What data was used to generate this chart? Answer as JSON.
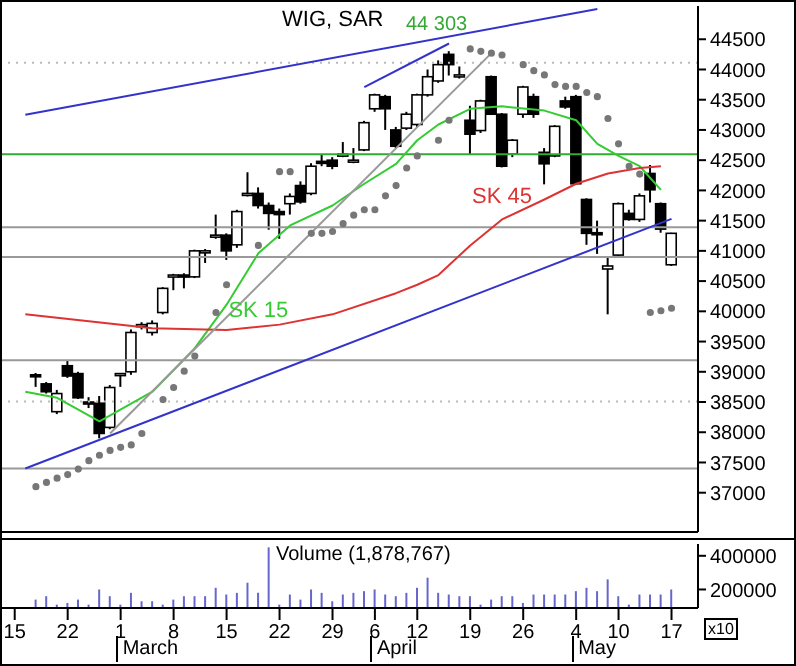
{
  "chart_data": [
    {
      "type": "candlestick",
      "title": "WIG, SAR",
      "categories": [
        "15",
        null,
        null,
        null,
        null,
        "22",
        null,
        null,
        null,
        null,
        "1",
        null,
        null,
        null,
        null,
        "8",
        null,
        null,
        null,
        null,
        "15",
        null,
        null,
        null,
        null,
        "22",
        null,
        null,
        null,
        null,
        "29",
        null,
        null,
        null,
        "6",
        null,
        null,
        null,
        "12",
        null,
        null,
        null,
        null,
        "19",
        null,
        null,
        null,
        null,
        "26",
        null,
        null,
        null,
        null,
        "4",
        null,
        null,
        null,
        "10",
        null,
        null,
        null,
        null,
        "17",
        null,
        null
      ],
      "ohlc": [
        null,
        null,
        [
          38950,
          38980,
          38750,
          38930
        ],
        [
          38800,
          38830,
          38640,
          38670
        ],
        [
          38340,
          38700,
          38300,
          38640
        ],
        [
          39100,
          39180,
          38900,
          38930
        ],
        [
          38970,
          39000,
          38550,
          38570
        ],
        [
          38500,
          38580,
          38400,
          38480
        ],
        [
          38480,
          38600,
          37900,
          37980
        ],
        [
          38080,
          38780,
          38050,
          38740
        ],
        [
          38950,
          38980,
          38750,
          38970
        ],
        [
          39000,
          39700,
          38950,
          39650
        ],
        [
          39760,
          39820,
          39700,
          39780
        ],
        [
          39650,
          39850,
          39600,
          39800
        ],
        [
          39980,
          40400,
          39950,
          40380
        ],
        [
          40580,
          40620,
          40350,
          40600
        ],
        [
          40600,
          40630,
          40380,
          40580
        ],
        [
          40570,
          41020,
          40550,
          41000
        ],
        [
          40980,
          41030,
          40800,
          41000
        ],
        [
          41230,
          41600,
          41200,
          41260
        ],
        [
          41260,
          41290,
          40850,
          41000
        ],
        [
          41100,
          41680,
          41050,
          41650
        ],
        [
          41930,
          42300,
          41900,
          41950
        ],
        [
          41950,
          42050,
          41700,
          41750
        ],
        [
          41750,
          41800,
          41350,
          41620
        ],
        [
          41650,
          41700,
          41200,
          41600
        ],
        [
          41780,
          41950,
          41600,
          41900
        ],
        [
          42080,
          42150,
          41780,
          41810
        ],
        [
          41950,
          42450,
          41920,
          42400
        ],
        [
          42480,
          42600,
          42400,
          42450
        ],
        [
          42500,
          42550,
          42350,
          42400
        ],
        [
          42580,
          42800,
          42550,
          42600
        ],
        [
          42480,
          42700,
          42450,
          42500
        ],
        [
          42670,
          43150,
          42650,
          43120
        ],
        [
          43350,
          43600,
          43300,
          43580
        ],
        [
          43550,
          43580,
          43000,
          43350
        ],
        [
          43000,
          43050,
          42700,
          42730
        ],
        [
          43030,
          43300,
          43000,
          43260
        ],
        [
          43090,
          43600,
          43050,
          43580
        ],
        [
          43580,
          44000,
          43550,
          43880
        ],
        [
          43810,
          44150,
          43780,
          44080
        ],
        [
          44250,
          44303,
          43900,
          44080
        ],
        [
          43900,
          44050,
          43850,
          43910
        ],
        [
          43160,
          43400,
          42600,
          42930
        ],
        [
          42990,
          43500,
          42950,
          43480
        ],
        [
          43880,
          43900,
          43250,
          43260
        ],
        [
          43260,
          43280,
          42380,
          42400
        ],
        [
          42600,
          42850,
          42550,
          42830
        ],
        [
          43260,
          43730,
          43200,
          43710
        ],
        [
          43550,
          43600,
          43200,
          43260
        ],
        [
          42630,
          42700,
          42100,
          42440
        ],
        [
          42570,
          43080,
          42550,
          43060
        ],
        [
          43480,
          43550,
          43350,
          43380
        ],
        [
          43550,
          43580,
          42100,
          42110
        ],
        [
          41850,
          41870,
          41100,
          41290
        ],
        [
          41300,
          41500,
          40950,
          41280
        ],
        [
          40700,
          40900,
          39950,
          40750
        ],
        [
          40930,
          41800,
          40900,
          41780
        ],
        [
          41620,
          41680,
          41500,
          41520
        ],
        [
          41520,
          41950,
          41480,
          41910
        ],
        [
          42280,
          42420,
          41800,
          42010
        ],
        [
          41780,
          41800,
          41300,
          41360
        ],
        [
          40770,
          41300,
          40750,
          41290
        ],
        null,
        null
      ],
      "series": [
        {
          "type": "line",
          "name": "SK 15",
          "color": "#33cc33",
          "values": [
            null,
            38670,
            null,
            null,
            38570,
            null,
            null,
            null,
            38180,
            null,
            null,
            null,
            null,
            38670,
            null,
            null,
            null,
            39390,
            null,
            null,
            40110,
            null,
            null,
            40960,
            null,
            null,
            41420,
            null,
            null,
            null,
            41750,
            null,
            null,
            42110,
            null,
            null,
            42440,
            null,
            42830,
            null,
            43090,
            null,
            null,
            43350,
            null,
            null,
            43390,
            null,
            null,
            null,
            43320,
            null,
            null,
            43160,
            null,
            42770,
            null,
            42570,
            null,
            42400,
            null,
            42010,
            null,
            null,
            null
          ]
        },
        {
          "type": "line",
          "name": "SK 45",
          "color": "#dd3333",
          "values": [
            null,
            39950,
            null,
            null,
            null,
            null,
            null,
            null,
            null,
            null,
            null,
            null,
            null,
            39720,
            null,
            null,
            null,
            null,
            null,
            null,
            39690,
            null,
            null,
            null,
            null,
            39780,
            null,
            null,
            null,
            null,
            39950,
            null,
            null,
            null,
            null,
            null,
            40300,
            null,
            40440,
            null,
            40600,
            null,
            null,
            41090,
            null,
            null,
            41520,
            null,
            null,
            null,
            41850,
            null,
            null,
            42110,
            null,
            null,
            42280,
            null,
            null,
            42370,
            null,
            42400,
            null,
            null,
            null
          ]
        },
        {
          "type": "line",
          "color": "#3333cc",
          "values": [
            null,
            43250,
            null,
            null,
            null,
            null,
            null,
            null,
            null,
            null,
            null,
            null,
            null,
            null,
            null,
            null,
            null,
            null,
            null,
            null,
            null,
            null,
            null,
            null,
            null,
            null,
            null,
            null,
            null,
            null,
            null,
            null,
            null,
            null,
            null,
            null,
            null,
            null,
            null,
            null,
            null,
            null,
            null,
            null,
            null,
            null,
            null,
            null,
            null,
            null,
            null,
            null,
            null,
            null,
            null,
            45000,
            null,
            null,
            null,
            null,
            null,
            null,
            null,
            null,
            null
          ]
        },
        {
          "type": "line",
          "color": "#3333cc",
          "values": [
            null,
            null,
            null,
            null,
            null,
            null,
            null,
            null,
            null,
            null,
            null,
            null,
            null,
            null,
            null,
            null,
            null,
            null,
            null,
            null,
            null,
            null,
            null,
            null,
            null,
            null,
            null,
            null,
            null,
            null,
            null,
            null,
            null,
            43710,
            null,
            null,
            null,
            null,
            null,
            null,
            null,
            44430,
            null,
            null,
            null,
            null,
            null,
            null,
            null,
            null,
            null,
            null,
            null,
            null,
            null,
            null,
            null,
            null,
            null,
            null,
            null,
            null,
            null,
            null,
            null
          ]
        },
        {
          "type": "line",
          "color": "#3333cc",
          "values": [
            null,
            37400,
            null,
            null,
            null,
            null,
            null,
            null,
            null,
            null,
            null,
            null,
            null,
            null,
            null,
            null,
            null,
            null,
            null,
            null,
            null,
            null,
            null,
            null,
            null,
            null,
            null,
            null,
            null,
            null,
            null,
            null,
            null,
            null,
            null,
            null,
            null,
            null,
            null,
            null,
            null,
            null,
            null,
            null,
            null,
            null,
            null,
            null,
            null,
            null,
            null,
            null,
            null,
            null,
            null,
            null,
            null,
            null,
            null,
            null,
            null,
            null,
            41530,
            null,
            null
          ]
        },
        {
          "type": "line",
          "color": "#999999",
          "values": [
            null,
            null,
            null,
            null,
            null,
            null,
            null,
            null,
            null,
            37980,
            null,
            null,
            null,
            null,
            null,
            null,
            null,
            null,
            null,
            null,
            null,
            null,
            null,
            null,
            null,
            null,
            null,
            null,
            null,
            null,
            null,
            null,
            null,
            null,
            null,
            null,
            null,
            null,
            null,
            null,
            null,
            null,
            null,
            null,
            null,
            44270,
            null,
            null,
            null,
            null,
            null,
            null,
            null,
            null,
            null,
            null,
            null,
            null,
            null,
            null,
            null,
            null,
            null,
            null,
            null
          ]
        },
        {
          "type": "scatter",
          "color": "#777777",
          "marker": "circle",
          "values": [
            null,
            null,
            37100,
            37170,
            37240,
            37300,
            37390,
            37530,
            37620,
            37700,
            37750,
            37790,
            37980,
            null,
            38540,
            38740,
            39010,
            39260,
            null,
            39980,
            40440,
            null,
            null,
            41090,
            null,
            42310,
            42310,
            null,
            41290,
            41290,
            41320,
            41450,
            41590,
            41680,
            41680,
            41910,
            42080,
            42370,
            42570,
            null,
            42830,
            43160,
            null,
            44340,
            44300,
            44270,
            44240,
            null,
            44080,
            43980,
            43910,
            43750,
            43720,
            43720,
            43620,
            43550,
            43190,
            42770,
            42400,
            42270,
            39980,
            40010,
            40050,
            null,
            null
          ]
        }
      ],
      "ylim": [
        36350,
        45050
      ],
      "yticks": [
        37000,
        37500,
        38000,
        38500,
        39000,
        39500,
        40000,
        40500,
        41000,
        41500,
        42000,
        42500,
        43000,
        43500,
        44000,
        44500
      ],
      "ref_lines": [
        {
          "axis": "y",
          "value": 42600,
          "color": "#33aa33"
        },
        {
          "axis": "y",
          "value": 41390,
          "color": "#999999"
        },
        {
          "axis": "y",
          "value": 40900,
          "color": "#999999"
        },
        {
          "axis": "y",
          "value": 39190,
          "color": "#999999"
        },
        {
          "axis": "y",
          "value": 37400,
          "color": "#999999"
        },
        {
          "axis": "y",
          "value": 44110,
          "color": "#bbbbbb",
          "line_style": "dotted"
        },
        {
          "axis": "y",
          "value": 38510,
          "color": "#bbbbbb",
          "line_style": "dotted"
        }
      ],
      "annotations": [
        {
          "text": "44 303",
          "y": 44303
        }
      ],
      "tick_labels": "y"
    },
    {
      "type": "bar",
      "title": "Volume (1,878,767)",
      "categories": [
        "15",
        null,
        null,
        null,
        null,
        "22",
        null,
        null,
        null,
        null,
        "1",
        null,
        null,
        null,
        null,
        "8",
        null,
        null,
        null,
        null,
        "15",
        null,
        null,
        null,
        null,
        "22",
        null,
        null,
        null,
        null,
        "29",
        null,
        null,
        null,
        "6",
        null,
        null,
        null,
        "12",
        null,
        null,
        null,
        null,
        "19",
        null,
        null,
        null,
        null,
        "26",
        null,
        null,
        null,
        null,
        "4",
        null,
        null,
        null,
        "10",
        null,
        null,
        null,
        null,
        "17",
        null,
        null
      ],
      "values": [
        null,
        null,
        140000,
        160000,
        110000,
        120000,
        140000,
        110000,
        200000,
        160000,
        110000,
        180000,
        130000,
        130000,
        110000,
        140000,
        160000,
        160000,
        160000,
        210000,
        170000,
        180000,
        240000,
        180000,
        450000,
        110000,
        170000,
        140000,
        200000,
        180000,
        130000,
        170000,
        180000,
        190000,
        200000,
        170000,
        160000,
        180000,
        210000,
        270000,
        180000,
        170000,
        160000,
        160000,
        110000,
        140000,
        160000,
        160000,
        120000,
        170000,
        170000,
        170000,
        170000,
        190000,
        210000,
        190000,
        260000,
        160000,
        110000,
        170000,
        170000,
        170000,
        200000,
        null,
        null
      ],
      "color": "#6666cc",
      "ylim": [
        90000,
        470000
      ],
      "yticks": [
        200000,
        400000
      ],
      "annotations": [
        "x10",
        "March",
        "April",
        "May"
      ]
    }
  ]
}
